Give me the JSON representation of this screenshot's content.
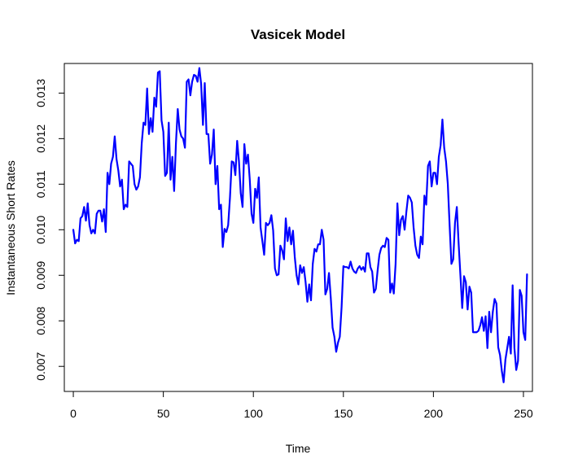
{
  "chart_data": {
    "type": "line",
    "title": "Vasicek Model",
    "xlabel": "Time",
    "ylabel": "Instantaneous Short Rates",
    "xlim": [
      -5,
      255
    ],
    "ylim": [
      0.00645,
      0.01365
    ],
    "x_ticks": [
      0,
      50,
      100,
      150,
      200,
      250
    ],
    "y_ticks": [
      0.007,
      0.008,
      0.009,
      0.01,
      0.011,
      0.012,
      0.013
    ],
    "x_tick_labels": [
      "0",
      "50",
      "100",
      "150",
      "200",
      "250"
    ],
    "y_tick_labels": [
      "0.007",
      "0.008",
      "0.009",
      "0.010",
      "0.011",
      "0.012",
      "0.013"
    ],
    "grid": false,
    "line_color": "#0000ff",
    "series": [
      {
        "x_start": 0,
        "x_step": 1,
        "values": [
          0.01,
          0.0097,
          0.00978,
          0.00975,
          0.01025,
          0.0103,
          0.0105,
          0.0102,
          0.01058,
          0.0101,
          0.00992,
          0.01,
          0.00992,
          0.01035,
          0.01042,
          0.01042,
          0.01018,
          0.01045,
          0.00995,
          0.01125,
          0.011,
          0.01145,
          0.0116,
          0.01205,
          0.01155,
          0.0113,
          0.01095,
          0.0111,
          0.01045,
          0.01055,
          0.0105,
          0.0115,
          0.01145,
          0.0114,
          0.011,
          0.01088,
          0.01095,
          0.01115,
          0.0119,
          0.01235,
          0.0123,
          0.0131,
          0.0121,
          0.01245,
          0.01215,
          0.0129,
          0.0127,
          0.01345,
          0.01348,
          0.0124,
          0.01215,
          0.01118,
          0.01125,
          0.01235,
          0.0111,
          0.0116,
          0.01085,
          0.0119,
          0.01265,
          0.0122,
          0.01205,
          0.012,
          0.0118,
          0.01325,
          0.0133,
          0.01295,
          0.01325,
          0.0134,
          0.01338,
          0.01325,
          0.01355,
          0.0132,
          0.0123,
          0.01322,
          0.0121,
          0.0121,
          0.01145,
          0.01165,
          0.0122,
          0.011,
          0.0114,
          0.01045,
          0.01055,
          0.00962,
          0.01002,
          0.00995,
          0.0101,
          0.0107,
          0.0115,
          0.01148,
          0.0112,
          0.01195,
          0.0115,
          0.0108,
          0.0105,
          0.01188,
          0.01145,
          0.01165,
          0.0111,
          0.01035,
          0.01015,
          0.0109,
          0.0107,
          0.01115,
          0.01005,
          0.00975,
          0.00945,
          0.01015,
          0.0101,
          0.01015,
          0.01032,
          0.00998,
          0.00915,
          0.009,
          0.00902,
          0.00965,
          0.00955,
          0.00935,
          0.01025,
          0.00975,
          0.01005,
          0.00968,
          0.00998,
          0.0094,
          0.009,
          0.0088,
          0.00922,
          0.00905,
          0.00918,
          0.00885,
          0.00842,
          0.0088,
          0.00845,
          0.00925,
          0.00958,
          0.00952,
          0.00968,
          0.00968,
          0.01,
          0.00978,
          0.00858,
          0.0087,
          0.00905,
          0.0085,
          0.00785,
          0.00765,
          0.00732,
          0.00752,
          0.00765,
          0.0083,
          0.0092,
          0.00918,
          0.00918,
          0.00915,
          0.0093,
          0.00915,
          0.00908,
          0.00905,
          0.00915,
          0.0092,
          0.00912,
          0.00918,
          0.00908,
          0.00948,
          0.00948,
          0.00918,
          0.00908,
          0.00862,
          0.0087,
          0.0091,
          0.00945,
          0.0096,
          0.00965,
          0.00962,
          0.00982,
          0.00978,
          0.00862,
          0.00882,
          0.0086,
          0.00925,
          0.01058,
          0.00988,
          0.01022,
          0.0103,
          0.01,
          0.0104,
          0.01075,
          0.0107,
          0.0106,
          0.01005,
          0.00965,
          0.00945,
          0.00938,
          0.00985,
          0.00968,
          0.01075,
          0.01055,
          0.0114,
          0.0115,
          0.01095,
          0.01125,
          0.01125,
          0.011,
          0.0116,
          0.01185,
          0.01242,
          0.0118,
          0.0115,
          0.011,
          0.0101,
          0.00925,
          0.00935,
          0.01015,
          0.0105,
          0.0097,
          0.009,
          0.00828,
          0.00898,
          0.00885,
          0.00825,
          0.00875,
          0.00862,
          0.00775,
          0.00775,
          0.00775,
          0.00778,
          0.0079,
          0.00808,
          0.00778,
          0.0081,
          0.0074,
          0.0082,
          0.00775,
          0.0082,
          0.00848,
          0.00838,
          0.00742,
          0.00725,
          0.0069,
          0.00665,
          0.00715,
          0.0074,
          0.00765,
          0.00728,
          0.00878,
          0.0074,
          0.00692,
          0.00712,
          0.00868,
          0.00855,
          0.00775,
          0.00758,
          0.00902
        ]
      }
    ]
  }
}
